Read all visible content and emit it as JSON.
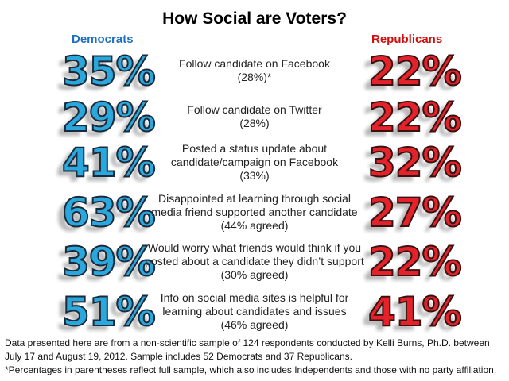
{
  "title": "How Social are Voters?",
  "legend": {
    "dem": "Democrats",
    "rep": "Republicans"
  },
  "colors": {
    "dem": "#2aa7dc",
    "rep": "#e4222a"
  },
  "rows": [
    {
      "q1": "Follow candidate on Facebook",
      "q2": "(28%)*",
      "q3": "",
      "dem": "35%",
      "rep": "22%"
    },
    {
      "q1": "Follow candidate on Twitter",
      "q2": "(28%)",
      "q3": "",
      "dem": "29%",
      "rep": "22%"
    },
    {
      "q1": "Posted a status update about",
      "q2": "candidate/campaign on Facebook",
      "q3": "(33%)",
      "dem": "41%",
      "rep": "32%"
    },
    {
      "q1": "Disappointed at learning through social",
      "q2": "media friend supported another candidate",
      "q3": "(44% agreed)",
      "dem": "63%",
      "rep": "27%"
    },
    {
      "q1": "Would worry what friends would think if you",
      "q2": "posted about a candidate they didn’t support",
      "q3": "(30% agreed)",
      "dem": "39%",
      "rep": "22%"
    },
    {
      "q1": "Info on social media sites is helpful for",
      "q2": "learning about candidates and issues",
      "q3": "(46% agreed)",
      "dem": "51%",
      "rep": "41%"
    }
  ],
  "notes": {
    "line1": "Data presented here are from a non-scientific sample of 124 respondents conducted by Kelli Burns, Ph.D. between July 17 and August 19, 2012. Sample includes 52 Democrats and 37 Republicans.",
    "line2": "*Percentages in parentheses reflect full sample, which also includes Independents and those with no party affiliation."
  },
  "chart_data": {
    "type": "table",
    "title": "How Social are Voters?",
    "categories": [
      "Follow candidate on Facebook",
      "Follow candidate on Twitter",
      "Posted a status update about candidate/campaign on Facebook",
      "Disappointed at learning through social media friend supported another candidate",
      "Would worry what friends would think if you posted about a candidate they didn’t support",
      "Info on social media sites is helpful for learning about candidates and issues"
    ],
    "series": [
      {
        "name": "Democrats",
        "values": [
          35,
          29,
          41,
          63,
          39,
          51
        ]
      },
      {
        "name": "Republicans",
        "values": [
          22,
          22,
          32,
          27,
          22,
          41
        ]
      }
    ],
    "full_sample": [
      28,
      28,
      33,
      44,
      30,
      46
    ]
  }
}
